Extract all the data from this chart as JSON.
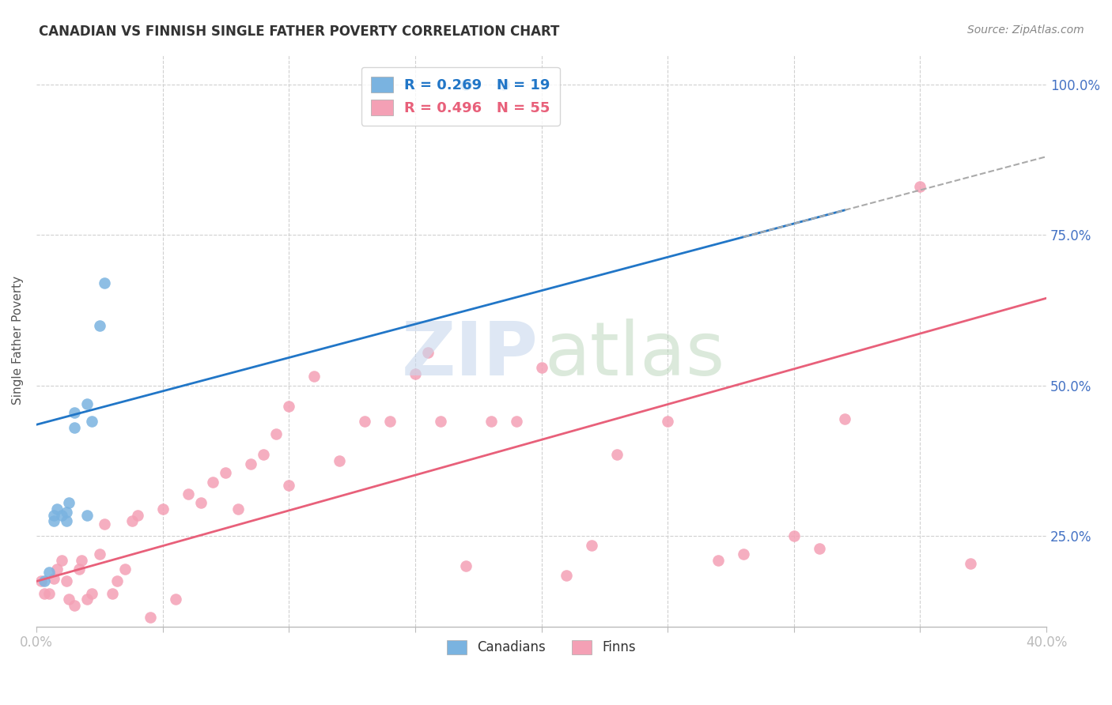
{
  "title": "CANADIAN VS FINNISH SINGLE FATHER POVERTY CORRELATION CHART",
  "source": "Source: ZipAtlas.com",
  "ylabel": "Single Father Poverty",
  "xlim": [
    0.0,
    0.4
  ],
  "ylim": [
    0.1,
    1.05
  ],
  "yticks": [
    0.25,
    0.5,
    0.75,
    1.0
  ],
  "ytick_labels": [
    "25.0%",
    "50.0%",
    "75.0%",
    "100.0%"
  ],
  "xticks": [
    0.0,
    0.05,
    0.1,
    0.15,
    0.2,
    0.25,
    0.3,
    0.35,
    0.4
  ],
  "xtick_labels": [
    "0.0%",
    "",
    "",
    "",
    "",
    "",
    "",
    "",
    "40.0%"
  ],
  "legend_r_canadian": "R = 0.269",
  "legend_n_canadian": "N = 19",
  "legend_r_finn": "R = 0.496",
  "legend_n_finn": "N = 55",
  "canadian_color": "#7ab3e0",
  "finn_color": "#f4a0b5",
  "canadian_line_color": "#2176c7",
  "finn_line_color": "#e8607a",
  "canadian_line": [
    0.0,
    0.435,
    0.4,
    0.88
  ],
  "finn_line": [
    0.0,
    0.175,
    0.4,
    0.645
  ],
  "canadian_dash_line": [
    0.32,
    0.4
  ],
  "background_color": "#ffffff",
  "tick_color": "#4472c4",
  "grid_color": "#d0d0d0",
  "canadian_scatter_x": [
    0.003,
    0.005,
    0.007,
    0.007,
    0.008,
    0.01,
    0.012,
    0.012,
    0.013,
    0.015,
    0.015,
    0.02,
    0.02,
    0.022,
    0.025,
    0.027,
    0.17,
    0.17,
    0.185
  ],
  "canadian_scatter_y": [
    0.175,
    0.19,
    0.275,
    0.285,
    0.295,
    0.285,
    0.275,
    0.29,
    0.305,
    0.43,
    0.455,
    0.285,
    0.47,
    0.44,
    0.6,
    0.67,
    1.0,
    1.0,
    1.0
  ],
  "finn_scatter_x": [
    0.002,
    0.003,
    0.005,
    0.007,
    0.008,
    0.01,
    0.012,
    0.013,
    0.015,
    0.017,
    0.018,
    0.02,
    0.022,
    0.025,
    0.027,
    0.03,
    0.032,
    0.035,
    0.038,
    0.04,
    0.045,
    0.05,
    0.055,
    0.06,
    0.065,
    0.07,
    0.075,
    0.08,
    0.085,
    0.09,
    0.095,
    0.1,
    0.1,
    0.11,
    0.12,
    0.13,
    0.14,
    0.15,
    0.155,
    0.16,
    0.17,
    0.18,
    0.19,
    0.2,
    0.21,
    0.22,
    0.23,
    0.25,
    0.27,
    0.28,
    0.3,
    0.31,
    0.32,
    0.35,
    0.37
  ],
  "finn_scatter_y": [
    0.175,
    0.155,
    0.155,
    0.18,
    0.195,
    0.21,
    0.175,
    0.145,
    0.135,
    0.195,
    0.21,
    0.145,
    0.155,
    0.22,
    0.27,
    0.155,
    0.175,
    0.195,
    0.275,
    0.285,
    0.115,
    0.295,
    0.145,
    0.32,
    0.305,
    0.34,
    0.355,
    0.295,
    0.37,
    0.385,
    0.42,
    0.335,
    0.465,
    0.515,
    0.375,
    0.44,
    0.44,
    0.52,
    0.555,
    0.44,
    0.2,
    0.44,
    0.44,
    0.53,
    0.185,
    0.235,
    0.385,
    0.44,
    0.21,
    0.22,
    0.25,
    0.23,
    0.445,
    0.83,
    0.205
  ],
  "watermark_zip": "ZIP",
  "watermark_atlas": "atlas"
}
